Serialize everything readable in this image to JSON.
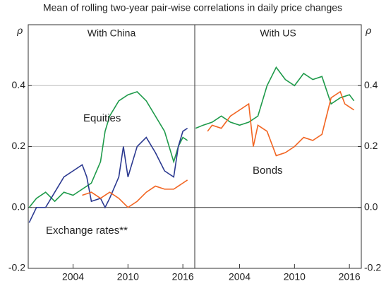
{
  "title": "Mean of rolling two-year pair-wise correlations in daily price changes",
  "chart_data": [
    {
      "type": "line",
      "title": "With China",
      "y_label": "ρ",
      "xlim": [
        1999.1,
        2017.3
      ],
      "xticks": [
        2004,
        2010,
        2016
      ],
      "ylim": [
        -0.2,
        0.6
      ],
      "yticks": [
        -0.2,
        {
          "value": 0,
          "label": "0.0"
        },
        0.2,
        0.4
      ],
      "grid": true,
      "series": [
        {
          "name": "Equities",
          "color": "#1e9a4a",
          "x": [
            1999.2,
            2000,
            2001,
            2002,
            2003,
            2004,
            2005,
            2006,
            2007,
            2007.5,
            2008,
            2009,
            2010,
            2011,
            2012,
            2013,
            2014,
            2015,
            2015.5,
            2016,
            2016.5
          ],
          "values": [
            0.0,
            0.03,
            0.05,
            0.02,
            0.05,
            0.04,
            0.06,
            0.08,
            0.15,
            0.25,
            0.3,
            0.35,
            0.37,
            0.38,
            0.35,
            0.3,
            0.25,
            0.15,
            0.2,
            0.23,
            0.22
          ]
        },
        {
          "name": "Exchange rates**",
          "color": "#2b3990",
          "x": [
            1999.2,
            2000,
            2001,
            2002,
            2003,
            2004,
            2005,
            2005.5,
            2006,
            2007,
            2007.5,
            2008,
            2009,
            2009.5,
            2010,
            2010.5,
            2011,
            2012,
            2013,
            2014,
            2015,
            2015.5,
            2016,
            2016.5
          ],
          "values": [
            -0.05,
            0.0,
            0.0,
            0.05,
            0.1,
            0.12,
            0.14,
            0.1,
            0.02,
            0.03,
            0.0,
            0.03,
            0.1,
            0.2,
            0.1,
            0.15,
            0.2,
            0.23,
            0.18,
            0.12,
            0.1,
            0.2,
            0.25,
            0.26
          ]
        },
        {
          "color": "#f26522",
          "x": [
            2005,
            2006,
            2007,
            2008,
            2009,
            2010,
            2011,
            2012,
            2013,
            2014,
            2015,
            2016,
            2016.5
          ],
          "values": [
            0.04,
            0.05,
            0.03,
            0.05,
            0.03,
            0.0,
            0.02,
            0.05,
            0.07,
            0.06,
            0.06,
            0.08,
            0.09
          ]
        }
      ]
    },
    {
      "type": "line",
      "title": "With US",
      "y_label": "ρ",
      "xlim": [
        1999.1,
        2017.3
      ],
      "xticks": [
        2004,
        2010,
        2016
      ],
      "ylim": [
        -0.2,
        0.6
      ],
      "yticks": [
        -0.2,
        {
          "value": 0,
          "label": "0.0"
        },
        0.2,
        0.4
      ],
      "grid": true,
      "series": [
        {
          "color": "#1e9a4a",
          "x": [
            1999.2,
            2000,
            2001,
            2002,
            2003,
            2004,
            2005,
            2006,
            2007,
            2008,
            2009,
            2010,
            2011,
            2012,
            2013,
            2014,
            2015,
            2016,
            2016.5
          ],
          "values": [
            0.26,
            0.27,
            0.28,
            0.3,
            0.28,
            0.27,
            0.28,
            0.3,
            0.4,
            0.46,
            0.42,
            0.4,
            0.44,
            0.42,
            0.43,
            0.34,
            0.36,
            0.37,
            0.35
          ]
        },
        {
          "name": "Bonds",
          "color": "#f26522",
          "x": [
            2000.5,
            2001,
            2002,
            2003,
            2004,
            2005,
            2005.5,
            2006,
            2007,
            2008,
            2009,
            2010,
            2011,
            2012,
            2013,
            2013.5,
            2014,
            2015,
            2015.5,
            2016,
            2016.5
          ],
          "values": [
            0.25,
            0.27,
            0.26,
            0.3,
            0.32,
            0.34,
            0.2,
            0.27,
            0.25,
            0.17,
            0.18,
            0.2,
            0.23,
            0.22,
            0.24,
            0.3,
            0.36,
            0.38,
            0.34,
            0.33,
            0.32
          ]
        }
      ]
    }
  ]
}
